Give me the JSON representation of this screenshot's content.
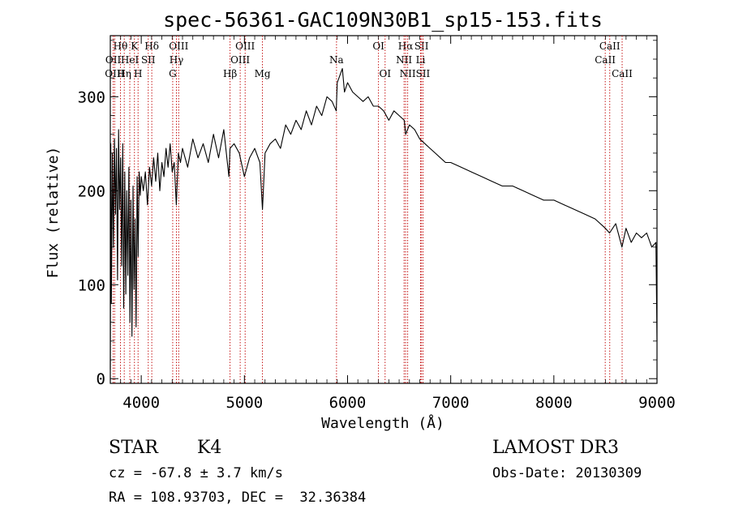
{
  "chart_data": {
    "type": "line",
    "title": "spec-56361-GAC109N30B1_sp15-153.fits",
    "xlabel": "Wavelength (Å)",
    "ylabel": "Flux (relative)",
    "xlim": [
      3700,
      9000
    ],
    "ylim": [
      -5,
      365
    ],
    "xticks": [
      4000,
      5000,
      6000,
      7000,
      8000,
      9000
    ],
    "yticks": [
      0,
      100,
      200,
      300
    ],
    "series": [
      {
        "name": "spectrum",
        "x": [
          3700,
          3705,
          3710,
          3720,
          3730,
          3740,
          3750,
          3760,
          3770,
          3780,
          3790,
          3800,
          3810,
          3820,
          3830,
          3840,
          3850,
          3860,
          3870,
          3880,
          3890,
          3900,
          3910,
          3920,
          3930,
          3940,
          3950,
          3960,
          3970,
          3980,
          3990,
          4000,
          4020,
          4040,
          4060,
          4080,
          4100,
          4120,
          4140,
          4160,
          4180,
          4200,
          4220,
          4240,
          4260,
          4280,
          4300,
          4320,
          4340,
          4360,
          4380,
          4400,
          4450,
          4500,
          4550,
          4600,
          4650,
          4700,
          4750,
          4800,
          4850,
          4861,
          4900,
          4950,
          5000,
          5050,
          5100,
          5150,
          5175,
          5200,
          5250,
          5300,
          5350,
          5400,
          5450,
          5500,
          5550,
          5600,
          5650,
          5700,
          5750,
          5800,
          5850,
          5890,
          5900,
          5950,
          5970,
          6000,
          6050,
          6100,
          6150,
          6200,
          6250,
          6300,
          6350,
          6400,
          6450,
          6500,
          6550,
          6563,
          6600,
          6650,
          6700,
          6750,
          6800,
          6850,
          6900,
          6950,
          7000,
          7100,
          7200,
          7300,
          7400,
          7500,
          7600,
          7700,
          7800,
          7900,
          8000,
          8100,
          8200,
          8300,
          8400,
          8500,
          8540,
          8600,
          8660,
          8700,
          8750,
          8800,
          8850,
          8900,
          8950,
          8990,
          9000
        ],
        "y": [
          10,
          250,
          80,
          240,
          140,
          255,
          175,
          245,
          105,
          265,
          180,
          235,
          120,
          250,
          75,
          220,
          90,
          200,
          110,
          225,
          60,
          190,
          45,
          205,
          95,
          170,
          55,
          215,
          130,
          220,
          195,
          215,
          200,
          220,
          185,
          225,
          205,
          235,
          210,
          240,
          200,
          230,
          215,
          245,
          225,
          250,
          220,
          230,
          185,
          240,
          230,
          245,
          225,
          255,
          235,
          250,
          230,
          260,
          235,
          265,
          215,
          245,
          250,
          240,
          215,
          235,
          245,
          230,
          180,
          240,
          250,
          255,
          245,
          270,
          260,
          275,
          265,
          285,
          270,
          290,
          280,
          300,
          295,
          285,
          315,
          330,
          305,
          315,
          305,
          300,
          295,
          300,
          290,
          290,
          285,
          275,
          285,
          280,
          275,
          260,
          270,
          265,
          255,
          250,
          245,
          240,
          235,
          230,
          230,
          225,
          220,
          215,
          210,
          205,
          205,
          200,
          195,
          190,
          190,
          185,
          180,
          175,
          170,
          160,
          155,
          165,
          140,
          160,
          145,
          155,
          150,
          155,
          140,
          145,
          40
        ]
      }
    ],
    "lines": [
      {
        "name": "Hθ",
        "x": 3798,
        "row": 1
      },
      {
        "name": "OII",
        "x": 3728,
        "row": 2
      },
      {
        "name": "OIII",
        "x": 3742,
        "row": 3
      },
      {
        "name": "HeI",
        "x": 3889,
        "row": 2
      },
      {
        "name": "Hη",
        "x": 3835,
        "row": 3
      },
      {
        "name": "K",
        "x": 3934,
        "row": 1
      },
      {
        "name": "SII",
        "x": 4068,
        "row": 2
      },
      {
        "name": "H",
        "x": 3969,
        "row": 3
      },
      {
        "name": "Hδ",
        "x": 4102,
        "row": 1
      },
      {
        "name": "OIII",
        "x": 4363,
        "row": 1
      },
      {
        "name": "Hγ",
        "x": 4341,
        "row": 2
      },
      {
        "name": "G",
        "x": 4305,
        "row": 3
      },
      {
        "name": "Hβ",
        "x": 4861,
        "row": 3
      },
      {
        "name": "OIII",
        "x": 5007,
        "row": 1
      },
      {
        "name": "OIII",
        "x": 4959,
        "row": 2
      },
      {
        "name": "Mg",
        "x": 5175,
        "row": 3
      },
      {
        "name": "Na",
        "x": 5893,
        "row": 2
      },
      {
        "name": "OI",
        "x": 6300,
        "row": 1
      },
      {
        "name": "OI",
        "x": 6364,
        "row": 3
      },
      {
        "name": "Hα",
        "x": 6563,
        "row": 1
      },
      {
        "name": "NII",
        "x": 6548,
        "row": 2
      },
      {
        "name": "NII",
        "x": 6583,
        "row": 3
      },
      {
        "name": "SII",
        "x": 6717,
        "row": 1
      },
      {
        "name": "Li",
        "x": 6708,
        "row": 2
      },
      {
        "name": "SII",
        "x": 6731,
        "row": 3
      },
      {
        "name": "CaII",
        "x": 8542,
        "row": 1
      },
      {
        "name": "CaII",
        "x": 8498,
        "row": 2
      },
      {
        "name": "CaII",
        "x": 8662,
        "row": 3
      }
    ]
  },
  "info": {
    "object_class": "STAR",
    "subclass": "K4",
    "survey": "LAMOST DR3",
    "cz": "cz = -67.8 ± 3.7 km/s",
    "obs_date": "Obs-Date: 20130309",
    "coords": "RA = 108.93703, DEC =  32.36384"
  }
}
